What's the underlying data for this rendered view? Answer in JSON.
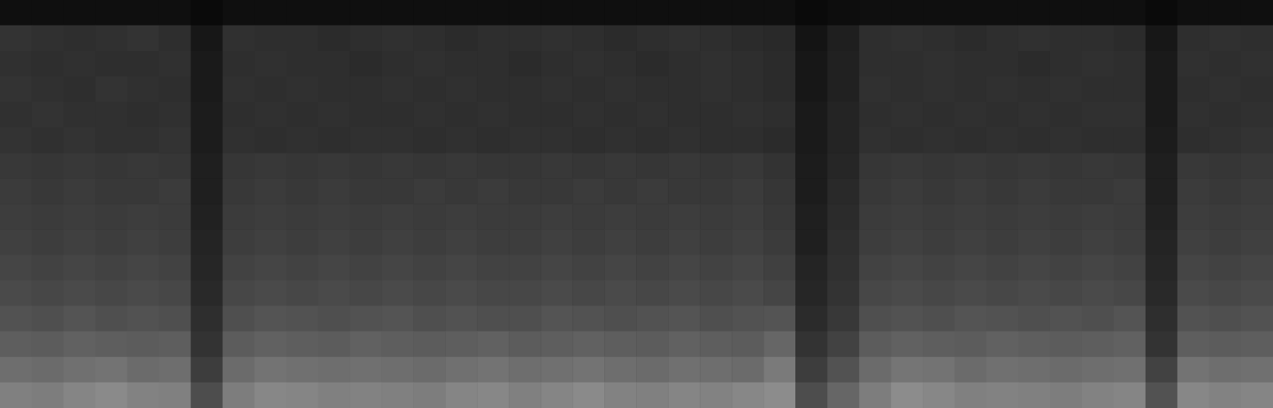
{
  "chart_data": {
    "type": "heatmap",
    "tick_labels": false,
    "grid": false,
    "zlim": [
      0,
      100
    ],
    "cells": [
      [
        6,
        6,
        6,
        6,
        6,
        6,
        4,
        6,
        6,
        6,
        6,
        6,
        6,
        6,
        6,
        6,
        6,
        6,
        6,
        6,
        6,
        6,
        6,
        6,
        6,
        4,
        5,
        6,
        6,
        6,
        6,
        6,
        6,
        6,
        6,
        6,
        4,
        6,
        6,
        6
      ],
      [
        20,
        19,
        18,
        19,
        20,
        18,
        9,
        19,
        18,
        18,
        17,
        18,
        19,
        18,
        17,
        18,
        18,
        19,
        18,
        17,
        18,
        19,
        18,
        17,
        16,
        8,
        12,
        18,
        19,
        18,
        17,
        18,
        19,
        18,
        18,
        17,
        9,
        18,
        19,
        18
      ],
      [
        19,
        18,
        19,
        18,
        18,
        19,
        10,
        18,
        19,
        18,
        18,
        17,
        18,
        19,
        18,
        18,
        17,
        18,
        19,
        18,
        17,
        18,
        19,
        18,
        17,
        9,
        13,
        18,
        18,
        19,
        18,
        18,
        17,
        18,
        19,
        18,
        10,
        19,
        18,
        19
      ],
      [
        20,
        19,
        18,
        20,
        19,
        18,
        10,
        19,
        18,
        19,
        18,
        18,
        19,
        18,
        19,
        18,
        18,
        19,
        18,
        19,
        18,
        18,
        19,
        18,
        17,
        9,
        13,
        19,
        18,
        19,
        18,
        19,
        18,
        19,
        18,
        18,
        10,
        18,
        19,
        18
      ],
      [
        19,
        20,
        19,
        19,
        18,
        19,
        11,
        18,
        19,
        18,
        19,
        18,
        18,
        19,
        18,
        19,
        18,
        18,
        19,
        18,
        19,
        18,
        18,
        19,
        18,
        10,
        14,
        18,
        19,
        18,
        19,
        18,
        19,
        18,
        19,
        19,
        10,
        19,
        18,
        19
      ],
      [
        20,
        19,
        20,
        19,
        19,
        20,
        11,
        19,
        18,
        19,
        18,
        19,
        19,
        18,
        19,
        18,
        19,
        19,
        18,
        19,
        18,
        19,
        18,
        18,
        17,
        10,
        14,
        19,
        18,
        19,
        18,
        19,
        18,
        19,
        18,
        18,
        11,
        18,
        19,
        20
      ],
      [
        22,
        21,
        22,
        21,
        22,
        21,
        12,
        21,
        22,
        21,
        22,
        21,
        22,
        21,
        22,
        21,
        21,
        22,
        21,
        22,
        21,
        22,
        21,
        22,
        20,
        11,
        15,
        21,
        22,
        21,
        22,
        21,
        22,
        21,
        22,
        21,
        12,
        22,
        21,
        22
      ],
      [
        23,
        22,
        23,
        22,
        22,
        23,
        12,
        22,
        23,
        22,
        23,
        22,
        22,
        23,
        22,
        23,
        22,
        22,
        23,
        22,
        23,
        22,
        22,
        23,
        21,
        11,
        16,
        22,
        23,
        22,
        23,
        22,
        23,
        22,
        22,
        23,
        12,
        23,
        22,
        23
      ],
      [
        24,
        23,
        24,
        23,
        24,
        23,
        13,
        23,
        24,
        23,
        24,
        23,
        24,
        23,
        24,
        23,
        23,
        24,
        23,
        24,
        23,
        24,
        23,
        24,
        22,
        12,
        17,
        23,
        24,
        23,
        24,
        23,
        24,
        23,
        24,
        23,
        13,
        24,
        23,
        24
      ],
      [
        25,
        24,
        25,
        24,
        25,
        24,
        14,
        24,
        25,
        24,
        25,
        24,
        25,
        24,
        25,
        24,
        24,
        25,
        24,
        25,
        24,
        25,
        24,
        25,
        23,
        12,
        18,
        24,
        25,
        24,
        25,
        24,
        25,
        24,
        25,
        24,
        14,
        25,
        24,
        25
      ],
      [
        27,
        26,
        27,
        26,
        27,
        26,
        15,
        26,
        27,
        26,
        27,
        26,
        27,
        26,
        27,
        26,
        26,
        27,
        26,
        27,
        26,
        27,
        26,
        27,
        25,
        14,
        19,
        26,
        27,
        26,
        27,
        26,
        27,
        26,
        27,
        26,
        15,
        27,
        26,
        27
      ],
      [
        29,
        28,
        29,
        28,
        29,
        28,
        16,
        28,
        29,
        28,
        29,
        28,
        29,
        28,
        29,
        28,
        28,
        29,
        28,
        29,
        28,
        29,
        28,
        29,
        27,
        15,
        20,
        28,
        29,
        28,
        29,
        28,
        29,
        28,
        29,
        28,
        16,
        29,
        28,
        29
      ],
      [
        32,
        31,
        33,
        31,
        32,
        31,
        18,
        31,
        33,
        32,
        31,
        32,
        33,
        31,
        32,
        31,
        31,
        33,
        32,
        31,
        32,
        33,
        31,
        32,
        33,
        17,
        22,
        31,
        32,
        31,
        33,
        32,
        31,
        32,
        31,
        33,
        18,
        32,
        31,
        32
      ],
      [
        37,
        36,
        38,
        37,
        36,
        37,
        20,
        36,
        38,
        37,
        36,
        38,
        37,
        36,
        37,
        38,
        36,
        37,
        38,
        37,
        36,
        38,
        37,
        36,
        40,
        20,
        26,
        36,
        38,
        37,
        36,
        38,
        37,
        36,
        37,
        38,
        20,
        37,
        36,
        37
      ],
      [
        43,
        42,
        44,
        45,
        42,
        43,
        24,
        42,
        45,
        44,
        43,
        44,
        43,
        42,
        44,
        45,
        43,
        44,
        45,
        43,
        42,
        44,
        43,
        42,
        48,
        24,
        32,
        42,
        46,
        45,
        42,
        44,
        43,
        42,
        43,
        44,
        26,
        45,
        43,
        44
      ],
      [
        50,
        49,
        52,
        54,
        51,
        50,
        30,
        49,
        53,
        52,
        50,
        51,
        50,
        49,
        52,
        53,
        50,
        52,
        54,
        51,
        50,
        52,
        51,
        53,
        55,
        30,
        40,
        49,
        55,
        53,
        50,
        51,
        50,
        49,
        51,
        52,
        32,
        53,
        51,
        52
      ]
    ]
  }
}
